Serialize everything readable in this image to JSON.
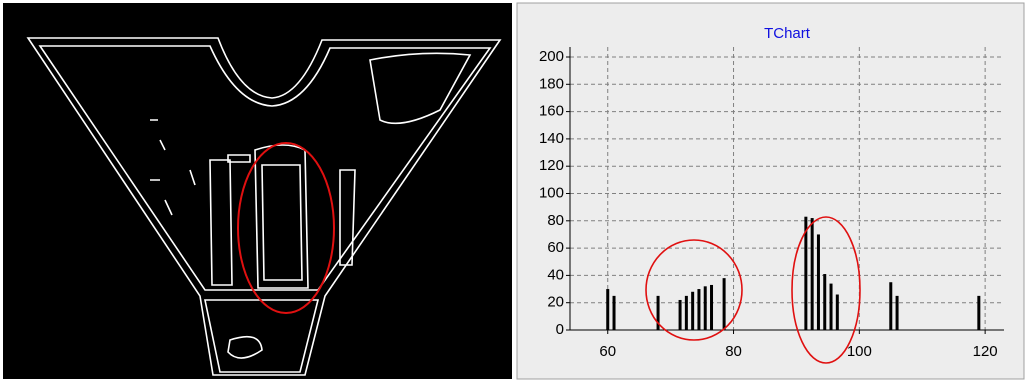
{
  "chart_data": {
    "type": "bar",
    "title": "TChart",
    "x": [
      60,
      61,
      68,
      71.5,
      72.5,
      73.5,
      74.5,
      75.5,
      76.5,
      78.5,
      91.5,
      92.5,
      93.5,
      94.5,
      95.5,
      96.5,
      105,
      106,
      119
    ],
    "values": [
      30,
      25,
      25,
      22,
      25,
      28,
      30,
      32,
      33,
      38,
      83,
      82,
      70,
      41,
      34,
      26,
      35,
      25,
      25
    ],
    "color": "#000000",
    "xlim": [
      54,
      123
    ],
    "ylim": [
      0,
      200
    ],
    "xticks": [
      60,
      80,
      100,
      120
    ],
    "yticks": [
      0,
      20,
      40,
      60,
      80,
      100,
      120,
      140,
      160,
      180,
      200
    ],
    "grid": true
  }
}
